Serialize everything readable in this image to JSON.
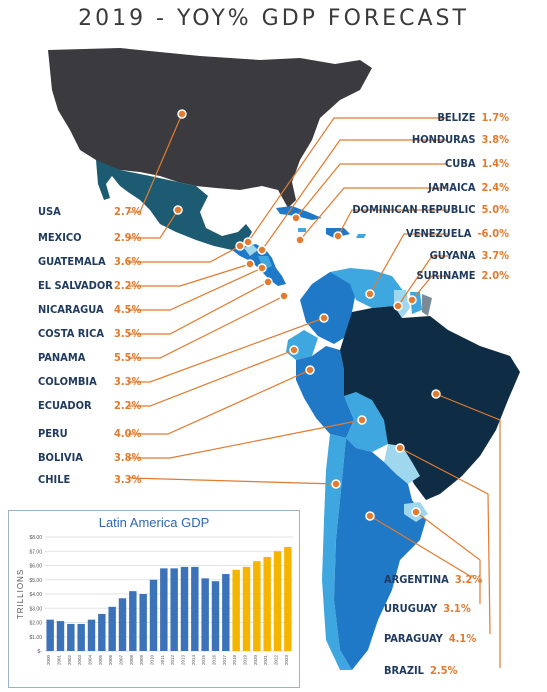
{
  "title": "2019 - YOY% GDP FORECAST",
  "colors": {
    "usa": "#3b3b3f",
    "mexico": "#1d5b73",
    "dark_navy": "#0f2c45",
    "blue": "#1f79c7",
    "light_blue": "#3fa7e0",
    "pale_blue": "#9fd8ee",
    "label_text": "#1f3a5f",
    "value_text": "#e07b30",
    "marker": "#e07b30"
  },
  "left_labels": [
    {
      "country": "USA",
      "value": "2.7%"
    },
    {
      "country": "MEXICO",
      "value": "2.9%"
    },
    {
      "country": "GUATEMALA",
      "value": "3.6%"
    },
    {
      "country": "EL SALVADOR",
      "value": "2.2%"
    },
    {
      "country": "NICARAGUA",
      "value": "4.5%"
    },
    {
      "country": "COSTA RICA",
      "value": "3.5%"
    },
    {
      "country": "PANAMA",
      "value": "5.5%"
    },
    {
      "country": "COLOMBIA",
      "value": "3.3%"
    },
    {
      "country": "ECUADOR",
      "value": "2.2%"
    },
    {
      "country": "PERU",
      "value": "4.0%"
    },
    {
      "country": "BOLIVIA",
      "value": "3.8%"
    },
    {
      "country": "CHILE",
      "value": "3.3%"
    }
  ],
  "right_labels": [
    {
      "country": "BELIZE",
      "value": "1.7%"
    },
    {
      "country": "HONDURAS",
      "value": "3.8%"
    },
    {
      "country": "CUBA",
      "value": "1.4%"
    },
    {
      "country": "JAMAICA",
      "value": "2.4%"
    },
    {
      "country": "DOMINICAN REPUBLIC",
      "value": "5.0%"
    },
    {
      "country": "VENEZUELA",
      "value": "-6.0%"
    },
    {
      "country": "GUYANA",
      "value": "3.7%"
    },
    {
      "country": "SURINAME",
      "value": "2.0%"
    }
  ],
  "bottom_labels": [
    {
      "country": "ARGENTINA",
      "value": "3.2%"
    },
    {
      "country": "URUGUAY",
      "value": "3.1%"
    },
    {
      "country": "PARAGUAY",
      "value": "4.1%"
    },
    {
      "country": "BRAZIL",
      "value": "2.5%"
    }
  ],
  "chart_data": {
    "type": "bar",
    "title": "Latin America GDP",
    "ylabel": "TRILLIONS",
    "ylim": [
      0,
      8
    ],
    "yticks": [
      "$-",
      "$1.00",
      "$2.00",
      "$3.00",
      "$4.00",
      "$5.00",
      "$6.00",
      "$7.00",
      "$8.00"
    ],
    "categories": [
      "2000",
      "2001",
      "2002",
      "2003",
      "2004",
      "2005",
      "2006",
      "2007",
      "2008",
      "2009",
      "2010",
      "2011",
      "2012",
      "2013",
      "2014",
      "2015",
      "2016",
      "2017",
      "2018",
      "2019",
      "2020",
      "2021",
      "2022",
      "2023"
    ],
    "values": [
      2.2,
      2.1,
      1.9,
      1.9,
      2.2,
      2.6,
      3.1,
      3.7,
      4.2,
      4.0,
      5.0,
      5.8,
      5.8,
      5.9,
      5.9,
      5.1,
      4.9,
      5.4,
      5.7,
      5.9,
      6.3,
      6.6,
      7.0,
      7.3
    ],
    "forecast_from_index": 18,
    "colors": {
      "actual": "#3c73b8",
      "forecast": "#f4b400"
    },
    "grid": true
  }
}
